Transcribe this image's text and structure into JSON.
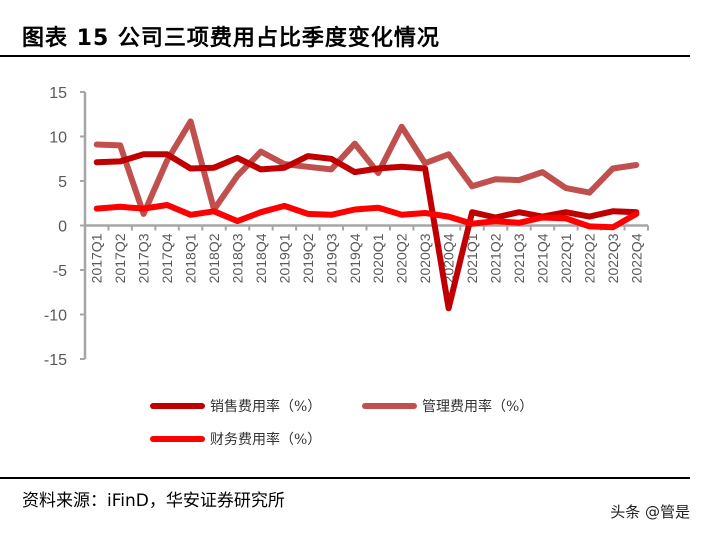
{
  "header": {
    "title": "图表 15 公司三项费用占比季度变化情况"
  },
  "footer": {
    "source": "资料来源：iFinD，华安证券研究所",
    "watermark": "头条 @管是"
  },
  "legend": {
    "items": [
      {
        "label": "销售费用率（%）",
        "color": "#C00000"
      },
      {
        "label": "管理费用率（%）",
        "color": "#C0504D"
      },
      {
        "label": "财务费用率（%）",
        "color": "#FF0000"
      }
    ]
  },
  "chart_data": {
    "type": "line",
    "title": "公司三项费用占比季度变化情况",
    "xlabel": "",
    "ylabel": "",
    "ylim": [
      -15,
      15
    ],
    "yticks": [
      15,
      10,
      5,
      0,
      -5,
      -10,
      -15
    ],
    "grid": false,
    "legend_position": "bottom",
    "categories": [
      "2017Q1",
      "2017Q2",
      "2017Q3",
      "2017Q4",
      "2018Q1",
      "2018Q2",
      "2018Q3",
      "2018Q4",
      "2019Q1",
      "2019Q2",
      "2019Q3",
      "2019Q4",
      "2020Q1",
      "2020Q2",
      "2020Q3",
      "2020Q4",
      "2021Q1",
      "2021Q2",
      "2021Q3",
      "2021Q4",
      "2022Q1",
      "2022Q2",
      "2022Q3",
      "2022Q4"
    ],
    "series": [
      {
        "name": "销售费用率（%）",
        "color": "#C00000",
        "values": [
          7.1,
          7.2,
          8.0,
          8.0,
          6.4,
          6.5,
          7.6,
          6.3,
          6.5,
          7.8,
          7.5,
          6.0,
          6.4,
          6.6,
          6.4,
          -9.3,
          1.5,
          0.9,
          1.5,
          1.0,
          1.5,
          1.0,
          1.6,
          1.5
        ]
      },
      {
        "name": "管理费用率（%）",
        "color": "#C0504D",
        "values": [
          9.1,
          9.0,
          1.3,
          7.3,
          11.7,
          1.8,
          5.6,
          8.3,
          6.9,
          6.6,
          6.3,
          9.2,
          5.9,
          11.1,
          7.0,
          8.0,
          4.4,
          5.2,
          5.1,
          6.0,
          4.2,
          3.7,
          6.4,
          6.8
        ]
      },
      {
        "name": "财务费用率（%）",
        "color": "#FF0000",
        "values": [
          1.9,
          2.1,
          1.9,
          2.3,
          1.2,
          1.6,
          0.5,
          1.5,
          2.2,
          1.3,
          1.2,
          1.8,
          2.0,
          1.2,
          1.4,
          1.0,
          0.2,
          0.5,
          0.3,
          0.9,
          0.8,
          -0.1,
          -0.2,
          1.3
        ]
      }
    ]
  }
}
